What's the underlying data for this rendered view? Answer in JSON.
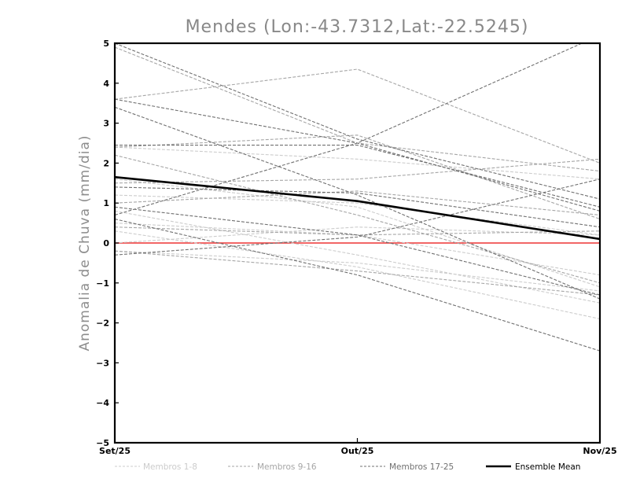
{
  "chart_data": {
    "type": "line",
    "title": "Mendes (Lon:-43.7312,Lat:-22.5245)",
    "xlabel": "",
    "ylabel": "Anomalia de Chuva (mm/dia)",
    "x": [
      "Set/25",
      "Out/25",
      "Nov/25"
    ],
    "ylim": [
      -5,
      5
    ],
    "yticks": [
      -5,
      -4,
      -3,
      -2,
      -1,
      0,
      1,
      2,
      3,
      4,
      5
    ],
    "zero_line_color": "#ee3333",
    "legend": [
      {
        "label": "Membros 1-8",
        "color": "#cccccc",
        "style": "dashed"
      },
      {
        "label": "Membros 9-16",
        "color": "#a6a6a6",
        "style": "dashed"
      },
      {
        "label": "Membros 17-25",
        "color": "#707070",
        "style": "dashed"
      },
      {
        "label": "Ensemble Mean",
        "color": "#000000",
        "style": "solid"
      }
    ],
    "series": [
      {
        "group": 1,
        "values": [
          2.4,
          2.1,
          1.6
        ]
      },
      {
        "group": 1,
        "values": [
          1.2,
          1.0,
          0.2
        ]
      },
      {
        "group": 1,
        "values": [
          0.5,
          0.2,
          -0.8
        ]
      },
      {
        "group": 1,
        "values": [
          -0.2,
          -0.5,
          -1.2
        ]
      },
      {
        "group": 1,
        "values": [
          0.3,
          -0.6,
          -1.9
        ]
      },
      {
        "group": 1,
        "values": [
          1.6,
          0.9,
          -1.1
        ]
      },
      {
        "group": 1,
        "values": [
          0.8,
          -0.3,
          -1.5
        ]
      },
      {
        "group": 1,
        "values": [
          0.0,
          0.4,
          0.2
        ]
      },
      {
        "group": 2,
        "values": [
          3.6,
          4.35,
          2.0
        ]
      },
      {
        "group": 2,
        "values": [
          2.4,
          2.7,
          0.6
        ]
      },
      {
        "group": 2,
        "values": [
          1.5,
          1.6,
          2.1
        ]
      },
      {
        "group": 2,
        "values": [
          4.9,
          2.5,
          1.8
        ]
      },
      {
        "group": 2,
        "values": [
          0.4,
          0.2,
          0.3
        ]
      },
      {
        "group": 2,
        "values": [
          1.0,
          1.3,
          0.7
        ]
      },
      {
        "group": 2,
        "values": [
          -0.2,
          -0.7,
          -1.3
        ]
      },
      {
        "group": 2,
        "values": [
          2.2,
          0.7,
          -1.0
        ]
      },
      {
        "group": 3,
        "values": [
          5.0,
          2.6,
          1.1
        ]
      },
      {
        "group": 3,
        "values": [
          0.7,
          2.5,
          5.2
        ]
      },
      {
        "group": 3,
        "values": [
          3.6,
          2.5,
          0.8
        ]
      },
      {
        "group": 3,
        "values": [
          3.4,
          1.2,
          -1.4
        ]
      },
      {
        "group": 3,
        "values": [
          2.45,
          2.45,
          0.9
        ]
      },
      {
        "group": 3,
        "values": [
          1.4,
          1.25,
          0.4
        ]
      },
      {
        "group": 3,
        "values": [
          0.9,
          0.2,
          -1.3
        ]
      },
      {
        "group": 3,
        "values": [
          0.6,
          -0.8,
          -2.7
        ]
      },
      {
        "group": 3,
        "values": [
          -0.3,
          0.15,
          1.6
        ]
      }
    ],
    "ensemble_mean": [
      1.65,
      1.05,
      0.1
    ]
  }
}
